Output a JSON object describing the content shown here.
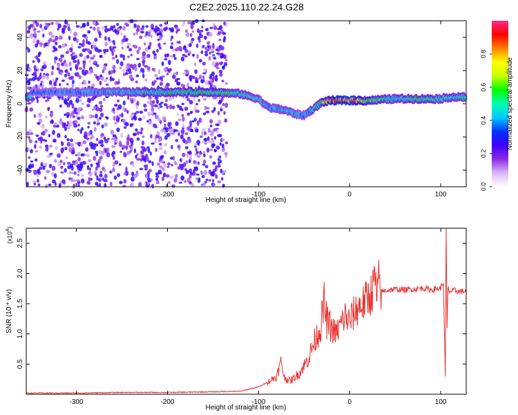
{
  "title": "C2E2.2025.110.22.24.G28",
  "colors": {
    "line": "#e8302c",
    "frame": "#000000",
    "colormap": [
      "#ffffff",
      "#d9b8f7",
      "#8a2be2",
      "#3b00ff",
      "#0033ff",
      "#00c8ff",
      "#00ffb0",
      "#00ff00",
      "#c8ff00",
      "#ffff00",
      "#ff8000",
      "#ff0000",
      "#ff2a8a"
    ]
  },
  "chart_data": [
    {
      "type": "heatmap",
      "xlabel": "Height of straight line (km)",
      "ylabel": "Frequency (Hz)",
      "xlim": [
        -355,
        128
      ],
      "ylim": [
        -50,
        50
      ],
      "xticks": [
        -300,
        -200,
        -100,
        0,
        100
      ],
      "yticks": [
        -40,
        -20,
        0,
        20,
        40
      ],
      "colorbar": {
        "label": "Normalized spectral amplitude",
        "range": [
          0,
          1
        ],
        "ticks": [
          "0.0",
          "0.2",
          "0.4",
          "0.6",
          "0.8"
        ]
      },
      "ridge": {
        "x": [
          -350,
          -300,
          -250,
          -200,
          -150,
          -120,
          -100,
          -90,
          -80,
          -70,
          -60,
          -50,
          -40,
          -30,
          -20,
          0,
          20,
          50,
          80,
          100,
          110,
          128
        ],
        "freq": [
          7,
          7,
          7,
          7,
          7,
          6,
          3,
          -2,
          -3,
          -4,
          -6,
          -7,
          -3,
          1,
          2,
          2,
          2,
          3,
          3,
          3,
          4,
          4
        ],
        "amplitude": [
          0.35,
          0.4,
          0.45,
          0.55,
          0.55,
          0.5,
          0.45,
          0.45,
          0.45,
          0.45,
          0.45,
          0.4,
          0.5,
          0.6,
          0.85,
          0.95,
          0.6,
          0.5,
          0.55,
          0.5,
          0.5,
          0.5
        ]
      }
    },
    {
      "type": "line",
      "xlabel": "Height of straight line (km)",
      "ylabel": "SNR (10 * v/v)",
      "exponent_label": "(x10",
      "exponent": "4",
      "exponent_close": ")",
      "xlim": [
        -355,
        128
      ],
      "ylim": [
        0,
        2.75
      ],
      "xticks": [
        -300,
        -200,
        -100,
        0,
        100
      ],
      "yticks": [
        "0.5",
        "1.0",
        "1.5",
        "2.0",
        "2.5"
      ],
      "series": [
        {
          "x": [
            -355,
            -300,
            -250,
            -200,
            -150,
            -120,
            -100,
            -90,
            -80,
            -75,
            -72,
            -65,
            -55,
            -45,
            -38,
            -32,
            -28,
            -25,
            -20,
            -15,
            -10,
            -5,
            0,
            5,
            10,
            15,
            20,
            25,
            28,
            30,
            32,
            35,
            40,
            50,
            60,
            70,
            80,
            90,
            100,
            103,
            105,
            106,
            107,
            108,
            110,
            115,
            120,
            128
          ],
          "y": [
            0.02,
            0.02,
            0.03,
            0.03,
            0.04,
            0.05,
            0.12,
            0.2,
            0.3,
            0.55,
            0.28,
            0.22,
            0.35,
            0.6,
            0.9,
            1.1,
            1.5,
            1.2,
            1.1,
            1.0,
            1.15,
            1.3,
            1.2,
            1.35,
            1.45,
            1.5,
            1.6,
            1.7,
            1.95,
            1.55,
            1.85,
            1.7,
            1.72,
            1.74,
            1.73,
            1.74,
            1.76,
            1.73,
            1.76,
            1.85,
            0.3,
            2.75,
            1.1,
            1.75,
            1.7,
            1.72,
            1.7,
            1.71
          ]
        }
      ]
    }
  ]
}
